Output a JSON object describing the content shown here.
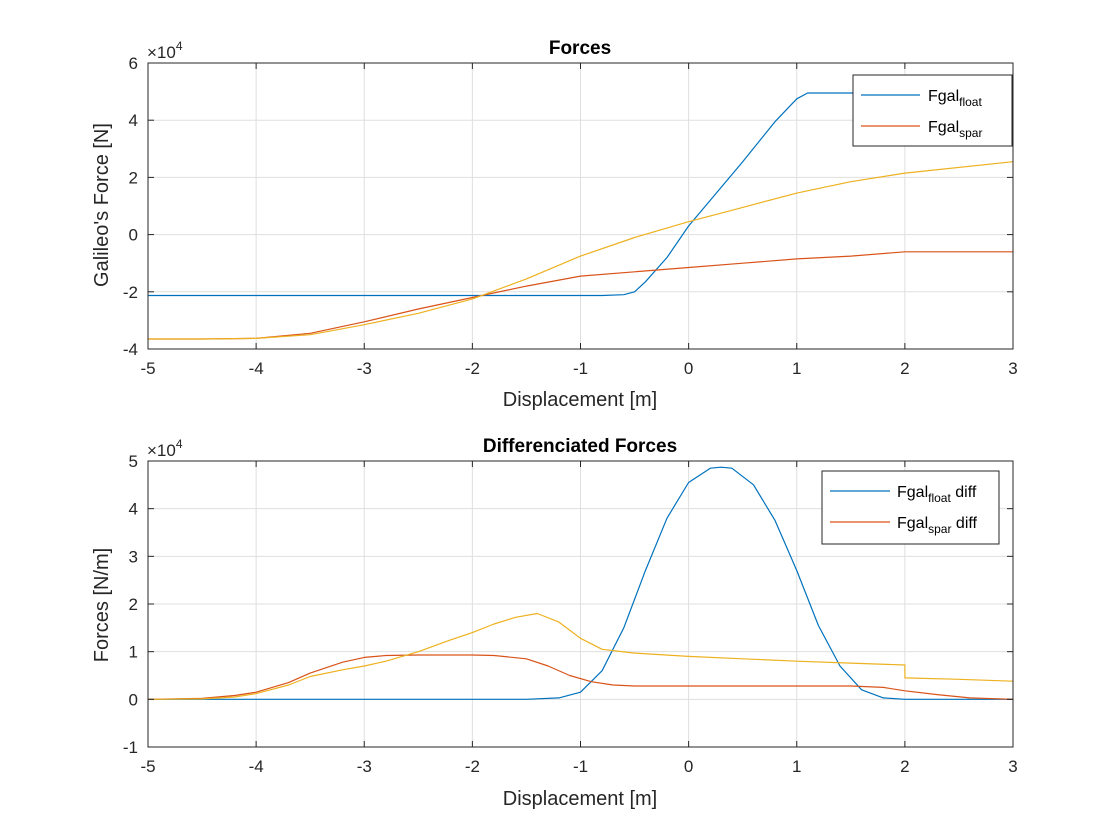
{
  "colors": {
    "series1": "#0072BD",
    "series2": "#D95319",
    "series3": "#EDB120",
    "grid": "#DFDFDF",
    "axis": "#262626"
  },
  "chart_data": [
    {
      "type": "line",
      "title": "Forces",
      "xlabel": "Displacement [m]",
      "ylabel": "Galileo's Force [N]",
      "xlim": [
        -5,
        3
      ],
      "ylim": [
        -4,
        6
      ],
      "y_multiplier": {
        "base": "×10",
        "exponent": "4"
      },
      "xticks": [
        -5,
        -4,
        -3,
        -2,
        -1,
        0,
        1,
        2,
        3
      ],
      "yticks": [
        -4,
        -2,
        0,
        2,
        4,
        6
      ],
      "grid": true,
      "legend_position": "top-right",
      "legend": [
        {
          "main": "Fgal",
          "sub": "float",
          "suffix": ""
        },
        {
          "main": "Fgal",
          "sub": "spar",
          "suffix": ""
        }
      ],
      "series": [
        {
          "x": [
            -5,
            -4,
            -3,
            -2,
            -1,
            -0.8,
            -0.6,
            -0.5,
            -0.4,
            -0.2,
            0,
            0.2,
            0.5,
            0.8,
            1.0,
            1.1,
            2,
            3
          ],
          "y": [
            -2.13,
            -2.13,
            -2.13,
            -2.13,
            -2.13,
            -2.13,
            -2.1,
            -2.0,
            -1.65,
            -0.8,
            0.3,
            1.2,
            2.55,
            3.95,
            4.75,
            4.95,
            4.95,
            4.95
          ]
        },
        {
          "x": [
            -5,
            -4.5,
            -4,
            -3.5,
            -3,
            -2.5,
            -2,
            -1.5,
            -1,
            -0.5,
            0,
            0.5,
            1,
            1.5,
            2,
            3
          ],
          "y": [
            -3.65,
            -3.65,
            -3.63,
            -3.45,
            -3.05,
            -2.6,
            -2.2,
            -1.8,
            -1.45,
            -1.3,
            -1.15,
            -1.0,
            -0.85,
            -0.75,
            -0.6,
            -0.6
          ]
        },
        {
          "x": [
            -5,
            -4.5,
            -4,
            -3.5,
            -3,
            -2.5,
            -2,
            -1.5,
            -1,
            -0.5,
            0,
            0.5,
            1,
            1.5,
            2,
            3
          ],
          "y": [
            -3.65,
            -3.65,
            -3.63,
            -3.5,
            -3.15,
            -2.75,
            -2.25,
            -1.55,
            -0.75,
            -0.1,
            0.45,
            0.95,
            1.45,
            1.85,
            2.15,
            2.55
          ]
        }
      ]
    },
    {
      "type": "line",
      "title": "Differenciated Forces",
      "xlabel": "Displacement [m]",
      "ylabel": "Forces [N/m]",
      "xlim": [
        -5,
        3
      ],
      "ylim": [
        -1,
        5
      ],
      "y_multiplier": {
        "base": "×10",
        "exponent": "4"
      },
      "xticks": [
        -5,
        -4,
        -3,
        -2,
        -1,
        0,
        1,
        2,
        3
      ],
      "yticks": [
        -1,
        0,
        1,
        2,
        3,
        4,
        5
      ],
      "grid": true,
      "legend_position": "top-right",
      "legend": [
        {
          "main": "Fgal",
          "sub": "float",
          "suffix": " diff"
        },
        {
          "main": "Fgal",
          "sub": "spar",
          "suffix": " diff"
        }
      ],
      "series": [
        {
          "x": [
            -5,
            -4,
            -3,
            -2,
            -1.5,
            -1.2,
            -1.0,
            -0.8,
            -0.6,
            -0.4,
            -0.2,
            0,
            0.2,
            0.3,
            0.4,
            0.6,
            0.8,
            1.0,
            1.2,
            1.4,
            1.6,
            1.8,
            2,
            3
          ],
          "y": [
            0,
            0,
            0,
            0,
            0,
            0.03,
            0.15,
            0.6,
            1.5,
            2.7,
            3.8,
            4.55,
            4.85,
            4.87,
            4.85,
            4.5,
            3.75,
            2.7,
            1.55,
            0.7,
            0.2,
            0.03,
            0,
            0
          ]
        },
        {
          "x": [
            -5,
            -4.5,
            -4.2,
            -4,
            -3.7,
            -3.5,
            -3.2,
            -3,
            -2.8,
            -2.5,
            -2,
            -1.8,
            -1.5,
            -1.3,
            -1.1,
            -0.9,
            -0.7,
            -0.5,
            0,
            0.5,
            1,
            1.5,
            1.8,
            2,
            2.3,
            2.6,
            3
          ],
          "y": [
            0,
            0.02,
            0.08,
            0.15,
            0.35,
            0.55,
            0.78,
            0.88,
            0.92,
            0.93,
            0.93,
            0.92,
            0.85,
            0.7,
            0.5,
            0.37,
            0.3,
            0.28,
            0.28,
            0.28,
            0.28,
            0.28,
            0.25,
            0.18,
            0.1,
            0.03,
            0
          ]
        },
        {
          "x": [
            -5,
            -4.5,
            -4.2,
            -4,
            -3.7,
            -3.5,
            -3.2,
            -3,
            -2.8,
            -2.5,
            -2.2,
            -2,
            -1.8,
            -1.6,
            -1.4,
            -1.2,
            -1.0,
            -0.8,
            -0.5,
            0,
            0.5,
            1,
            1.5,
            2,
            2,
            2.5,
            3
          ],
          "y": [
            0,
            0.01,
            0.05,
            0.12,
            0.3,
            0.48,
            0.62,
            0.7,
            0.8,
            1.0,
            1.25,
            1.4,
            1.58,
            1.72,
            1.8,
            1.62,
            1.28,
            1.05,
            0.97,
            0.9,
            0.85,
            0.8,
            0.76,
            0.72,
            0.45,
            0.42,
            0.38
          ]
        }
      ]
    }
  ]
}
